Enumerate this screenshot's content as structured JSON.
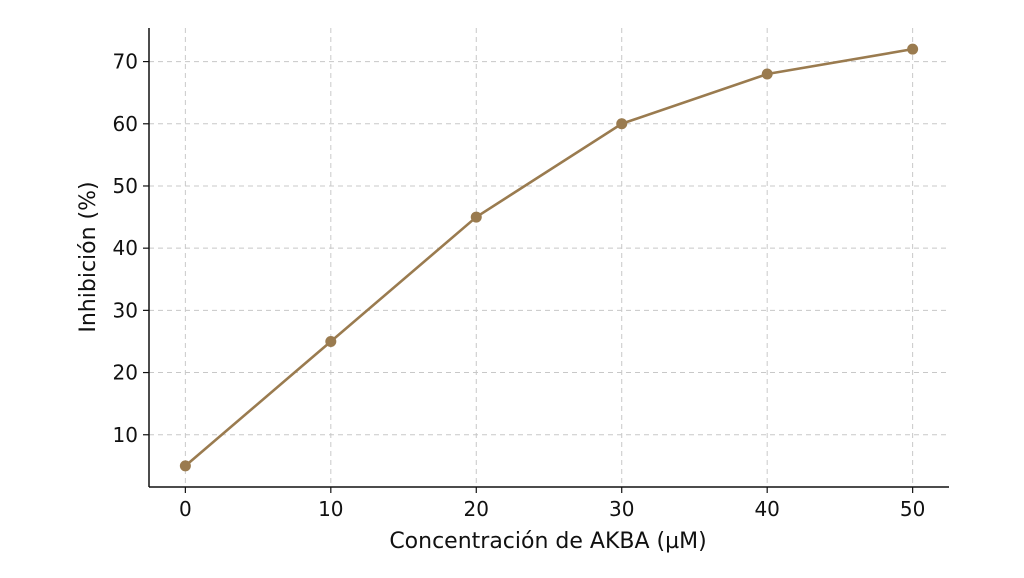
{
  "chart_data": {
    "type": "line",
    "title": "",
    "xlabel": "Concentración de AKBA (µM)",
    "ylabel": "Inhibición (%)",
    "x": [
      0,
      10,
      20,
      30,
      40,
      50
    ],
    "series": [
      {
        "values": [
          5,
          25,
          45,
          60,
          68,
          72
        ],
        "color": "#9a7b4f"
      }
    ],
    "xlim": [
      -2.5,
      52.5
    ],
    "ylim": [
      1.6,
      75.4
    ],
    "xticks": [
      0,
      10,
      20,
      30,
      40,
      50
    ],
    "yticks": [
      10,
      20,
      30,
      40,
      50,
      60,
      70
    ],
    "grid": true,
    "markers": true
  }
}
